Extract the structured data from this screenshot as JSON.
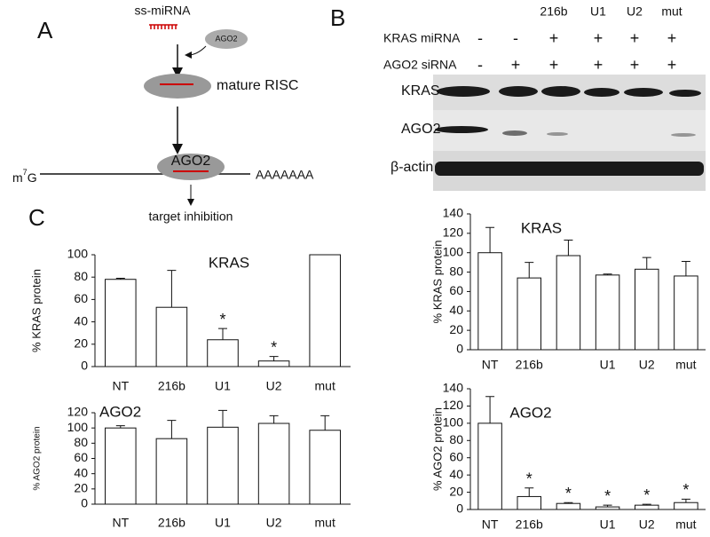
{
  "panel_a": {
    "letter": "A",
    "ss_label": "ss-miRNA",
    "ago2_free": "AGO2",
    "risc_label": "mature RISC",
    "ago2_bound": "AGO2",
    "cap": {
      "base": "m",
      "sup": "7",
      "rest": "G"
    },
    "polya": "AAAAAAA",
    "outcome": "target inhibition"
  },
  "panel_b": {
    "letter": "B",
    "columns": [
      "216b",
      "U1",
      "U2",
      "mut"
    ],
    "rows": [
      {
        "label": "KRAS miRNA",
        "marks": [
          "-",
          "-",
          "+",
          "+",
          "+",
          "+"
        ]
      },
      {
        "label": "AGO2 siRNA",
        "marks": [
          "-",
          "+",
          "+",
          "+",
          "+",
          "+"
        ]
      }
    ],
    "blots": [
      "KRAS",
      "AGO2",
      "β-actin"
    ]
  },
  "panel_c": {
    "letter": "C"
  },
  "chart_data": [
    {
      "type": "bar",
      "title": "KRAS",
      "y_label": "% KRAS protein",
      "categories": [
        "NT",
        "216b",
        "U1",
        "U2",
        "mut"
      ],
      "values": [
        78,
        53,
        24,
        5,
        100
      ],
      "errors": [
        1,
        33,
        10,
        4,
        0
      ],
      "value_annotations": [
        null,
        null,
        "*",
        "*",
        null
      ],
      "color": "#ffffff",
      "ylim": [
        0,
        100
      ],
      "yticks": [
        0,
        20,
        40,
        60,
        80,
        100
      ]
    },
    {
      "type": "bar",
      "title": "AGO2",
      "y_label": "% AGO2 protein",
      "categories": [
        "NT",
        "216b",
        "U1",
        "U2",
        "mut"
      ],
      "values": [
        100,
        86,
        101,
        106,
        97
      ],
      "errors": [
        3,
        24,
        22,
        10,
        19
      ],
      "value_annotations": [
        null,
        null,
        null,
        null,
        null
      ],
      "color": "#ffffff",
      "ylim": [
        0,
        120
      ],
      "yticks": [
        0,
        20,
        40,
        60,
        80,
        100,
        120
      ]
    },
    {
      "type": "bar",
      "title": "KRAS",
      "y_label": "% KRAS protein",
      "categories": [
        "NT",
        "216b",
        null,
        "U1",
        "U2",
        "mut"
      ],
      "values": [
        100,
        74,
        97,
        77,
        83,
        76
      ],
      "errors": [
        26,
        16,
        16,
        1,
        12,
        15
      ],
      "value_annotations": [
        null,
        null,
        null,
        null,
        null,
        null
      ],
      "color": "#ffffff",
      "ylim": [
        0,
        140
      ],
      "yticks": [
        0,
        20,
        40,
        60,
        80,
        100,
        120,
        140
      ]
    },
    {
      "type": "bar",
      "title": "AGO2",
      "y_label": "% AGO2 protein",
      "categories": [
        "NT",
        "216b",
        null,
        "U1",
        "U2",
        "mut"
      ],
      "values": [
        100,
        15,
        7,
        3,
        5,
        8
      ],
      "errors": [
        31,
        10,
        1,
        2,
        1,
        4
      ],
      "value_annotations": [
        null,
        "*",
        "*",
        "*",
        "*",
        "*"
      ],
      "color": "#ffffff",
      "ylim": [
        0,
        140
      ],
      "yticks": [
        0,
        20,
        40,
        60,
        80,
        100,
        120,
        140
      ]
    }
  ]
}
